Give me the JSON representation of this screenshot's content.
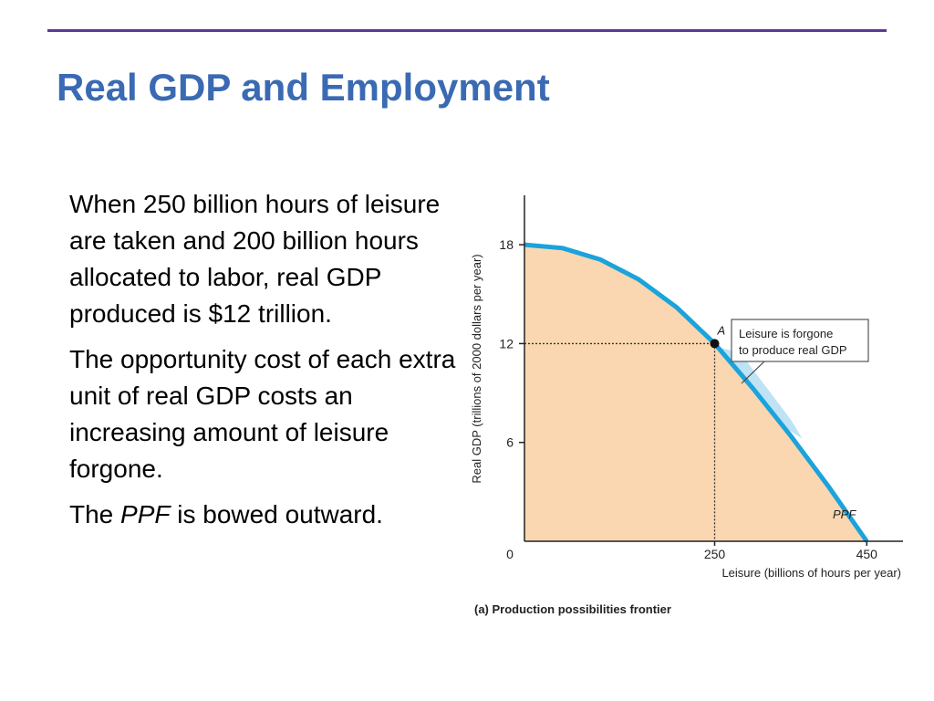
{
  "slide": {
    "title": "Real GDP and Employment",
    "paragraphs": [
      "When 250 billion hours of leisure are taken and 200 billion hours allocated to labor, real GDP produced is $12 trillion.",
      "The opportunity cost of each extra unit of real GDP costs an increasing amount of leisure forgone."
    ],
    "last_paragraph": {
      "prefix": "The ",
      "emphasis": "PPF",
      "suffix": " is bowed outward."
    }
  },
  "colors": {
    "title": "#3a6ab3",
    "rule": "#5b3a96",
    "curve": "#1aa3dc",
    "fill": "#fad7b0",
    "arrow": "#bfe3f5"
  },
  "chart_data": {
    "type": "area",
    "title": "",
    "caption": "(a) Production possibilities frontier",
    "xlabel": "Leisure (billions of hours per year)",
    "ylabel": "Real GDP (trillions of 2000 dollars per year)",
    "xlim": [
      0,
      500
    ],
    "ylim": [
      0,
      21
    ],
    "x_ticks": [
      0,
      250,
      450
    ],
    "y_ticks": [
      6,
      12,
      18
    ],
    "grid": false,
    "series": [
      {
        "name": "PPF",
        "x": [
          0,
          50,
          100,
          150,
          200,
          250,
          300,
          350,
          400,
          450
        ],
        "y": [
          18,
          17.8,
          17.1,
          15.9,
          14.2,
          12,
          9.3,
          6.4,
          3.3,
          0
        ]
      }
    ],
    "point": {
      "label": "A",
      "x": 250,
      "y": 12
    },
    "annotation": "Leisure is forgone to produce real GDP"
  }
}
